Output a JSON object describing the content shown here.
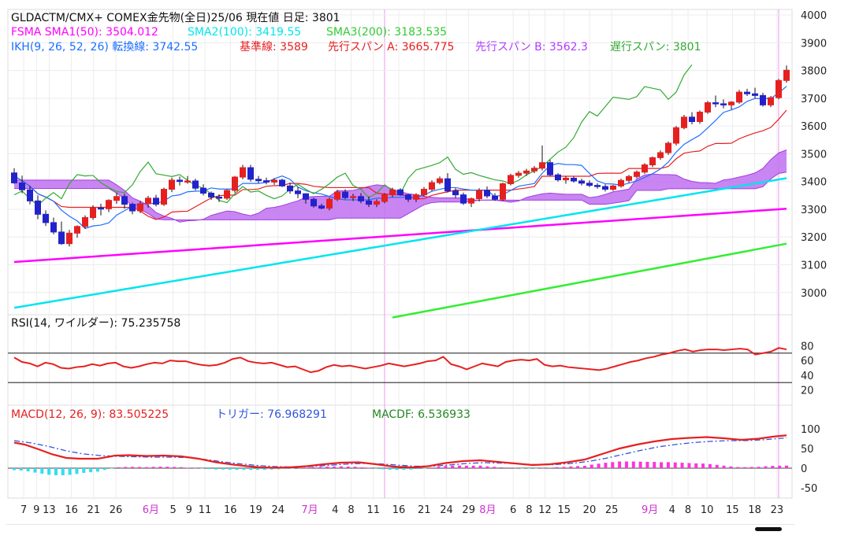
{
  "header": {
    "title": "GLDACTM/CMX+ COMEX金先物(全日)25/06  現在値 日足: 3801",
    "sma_line": [
      {
        "text": "FSMA SMA1(50): 3504.012",
        "color": "#ff00ff"
      },
      {
        "text": "SMA2(100): 3419.55",
        "color": "#00e5ee"
      },
      {
        "text": "SMA3(200): 3183.535",
        "color": "#33cc33"
      }
    ],
    "ikh_line": [
      {
        "text": "IKH(9, 26, 52, 26) 転換線: 3742.55",
        "color": "#1e6fff"
      },
      {
        "text": "基準線: 3589",
        "color": "#e62020"
      },
      {
        "text": "先行スパン A: 3665.775",
        "color": "#e62020"
      },
      {
        "text": "先行スパン B: 3562.3",
        "color": "#b03cff"
      },
      {
        "text": "遅行スパン: 3801",
        "color": "#33aa33"
      }
    ],
    "rsi_label": "RSI(14, ワイルダー): 75.235758",
    "macd_line": [
      {
        "text": "MACD(12, 26, 9): 83.505225",
        "color": "#e62020"
      },
      {
        "text": "トリガー: 76.968291",
        "color": "#3355dd"
      },
      {
        "text": "MACDF: 6.536933",
        "color": "#228822"
      }
    ]
  },
  "colors": {
    "up": "#e62020",
    "down": "#2222cc",
    "sma50": "#ff00ff",
    "sma100": "#00e5ee",
    "sma200": "#33ee33",
    "tenkan": "#1e6fff",
    "kijun": "#e62020",
    "chikou": "#33aa33",
    "cloud": "#c070ee",
    "rsi": "#e62020",
    "macd": "#e62020",
    "trigger": "#3355dd",
    "hist": "#ff33dd",
    "hist_neg": "#33ddee",
    "month_line": "#ee99ee"
  },
  "chart_data": [
    {
      "type": "candlestick",
      "ylim": [
        2920,
        4020
      ],
      "yticks": [
        "4000",
        "3900",
        "3800",
        "3700",
        "3600",
        "3500",
        "3400",
        "3300",
        "3200",
        "3100",
        "3000"
      ],
      "ohlc": [
        [
          3431,
          3448,
          3392,
          3395
        ],
        [
          3395,
          3421,
          3358,
          3370
        ],
        [
          3370,
          3384,
          3318,
          3330
        ],
        [
          3330,
          3350,
          3264,
          3282
        ],
        [
          3282,
          3296,
          3240,
          3252
        ],
        [
          3252,
          3270,
          3210,
          3218
        ],
        [
          3218,
          3256,
          3172,
          3176
        ],
        [
          3176,
          3226,
          3166,
          3214
        ],
        [
          3214,
          3242,
          3198,
          3238
        ],
        [
          3238,
          3278,
          3230,
          3270
        ],
        [
          3270,
          3314,
          3262,
          3305
        ],
        [
          3305,
          3320,
          3278,
          3302
        ],
        [
          3302,
          3336,
          3290,
          3332
        ],
        [
          3332,
          3360,
          3320,
          3346
        ],
        [
          3346,
          3356,
          3302,
          3318
        ],
        [
          3318,
          3324,
          3282,
          3294
        ],
        [
          3294,
          3330,
          3286,
          3320
        ],
        [
          3320,
          3348,
          3306,
          3340
        ],
        [
          3340,
          3352,
          3310,
          3318
        ],
        [
          3318,
          3378,
          3312,
          3372
        ],
        [
          3372,
          3414,
          3362,
          3405
        ],
        [
          3405,
          3418,
          3386,
          3400
        ],
        [
          3400,
          3420,
          3392,
          3402
        ],
        [
          3402,
          3410,
          3368,
          3376
        ],
        [
          3376,
          3390,
          3350,
          3358
        ],
        [
          3358,
          3364,
          3334,
          3344
        ],
        [
          3344,
          3354,
          3326,
          3340
        ],
        [
          3340,
          3372,
          3334,
          3368
        ],
        [
          3368,
          3420,
          3360,
          3416
        ],
        [
          3416,
          3460,
          3408,
          3450
        ],
        [
          3450,
          3460,
          3400,
          3408
        ],
        [
          3408,
          3420,
          3394,
          3403
        ],
        [
          3403,
          3414,
          3390,
          3398
        ],
        [
          3398,
          3412,
          3388,
          3405
        ],
        [
          3405,
          3410,
          3380,
          3384
        ],
        [
          3384,
          3396,
          3356,
          3366
        ],
        [
          3366,
          3380,
          3340,
          3356
        ],
        [
          3356,
          3358,
          3320,
          3336
        ],
        [
          3336,
          3342,
          3306,
          3312
        ],
        [
          3312,
          3320,
          3300,
          3304
        ],
        [
          3304,
          3342,
          3296,
          3336
        ],
        [
          3336,
          3370,
          3330,
          3362
        ],
        [
          3362,
          3372,
          3336,
          3342
        ],
        [
          3342,
          3356,
          3330,
          3346
        ],
        [
          3346,
          3358,
          3322,
          3330
        ],
        [
          3330,
          3346,
          3308,
          3318
        ],
        [
          3318,
          3336,
          3308,
          3328
        ],
        [
          3328,
          3358,
          3322,
          3352
        ],
        [
          3352,
          3378,
          3344,
          3370
        ],
        [
          3370,
          3376,
          3348,
          3352
        ],
        [
          3352,
          3356,
          3326,
          3336
        ],
        [
          3336,
          3358,
          3326,
          3352
        ],
        [
          3352,
          3380,
          3346,
          3372
        ],
        [
          3372,
          3404,
          3366,
          3396
        ],
        [
          3396,
          3418,
          3390,
          3410
        ],
        [
          3410,
          3430,
          3360,
          3366
        ],
        [
          3366,
          3376,
          3340,
          3352
        ],
        [
          3352,
          3360,
          3316,
          3322
        ],
        [
          3322,
          3342,
          3308,
          3338
        ],
        [
          3338,
          3376,
          3328,
          3368
        ],
        [
          3368,
          3382,
          3340,
          3348
        ],
        [
          3348,
          3358,
          3330,
          3336
        ],
        [
          3336,
          3396,
          3330,
          3392
        ],
        [
          3392,
          3428,
          3386,
          3422
        ],
        [
          3422,
          3438,
          3414,
          3430
        ],
        [
          3430,
          3446,
          3420,
          3438
        ],
        [
          3438,
          3456,
          3430,
          3448
        ],
        [
          3448,
          3530,
          3440,
          3468
        ],
        [
          3468,
          3478,
          3420,
          3424
        ],
        [
          3424,
          3430,
          3400,
          3406
        ],
        [
          3406,
          3420,
          3392,
          3412
        ],
        [
          3412,
          3418,
          3396,
          3402
        ],
        [
          3402,
          3410,
          3386,
          3394
        ],
        [
          3394,
          3404,
          3380,
          3386
        ],
        [
          3386,
          3394,
          3374,
          3382
        ],
        [
          3382,
          3390,
          3364,
          3372
        ],
        [
          3372,
          3388,
          3366,
          3384
        ],
        [
          3384,
          3410,
          3378,
          3404
        ],
        [
          3404,
          3424,
          3396,
          3418
        ],
        [
          3418,
          3440,
          3412,
          3434
        ],
        [
          3434,
          3466,
          3428,
          3460
        ],
        [
          3460,
          3490,
          3452,
          3486
        ],
        [
          3486,
          3512,
          3478,
          3504
        ],
        [
          3504,
          3544,
          3496,
          3538
        ],
        [
          3538,
          3600,
          3530,
          3594
        ],
        [
          3594,
          3640,
          3588,
          3632
        ],
        [
          3632,
          3650,
          3606,
          3616
        ],
        [
          3616,
          3656,
          3608,
          3650
        ],
        [
          3650,
          3690,
          3644,
          3684
        ],
        [
          3684,
          3710,
          3668,
          3680
        ],
        [
          3680,
          3696,
          3664,
          3676
        ],
        [
          3676,
          3690,
          3660,
          3686
        ],
        [
          3686,
          3730,
          3680,
          3722
        ],
        [
          3722,
          3734,
          3708,
          3716
        ],
        [
          3716,
          3738,
          3700,
          3710
        ],
        [
          3710,
          3720,
          3670,
          3676
        ],
        [
          3676,
          3708,
          3668,
          3702
        ],
        [
          3702,
          3770,
          3696,
          3764
        ],
        [
          3764,
          3818,
          3756,
          3801
        ]
      ],
      "sma50": [
        3110,
        3302
      ],
      "sma100": [
        2945,
        3412
      ],
      "sma200": [
        2910,
        3176
      ],
      "sma200_start_index": 48
    },
    {
      "type": "line",
      "name": "RSI",
      "ylim": [
        10,
        90
      ],
      "yticks": [
        "80",
        "60",
        "40",
        "20"
      ],
      "levels": [
        70,
        30
      ],
      "values": [
        64,
        58,
        56,
        52,
        57,
        55,
        50,
        49,
        51,
        52,
        55,
        53,
        56,
        57,
        52,
        50,
        52,
        55,
        57,
        56,
        60,
        59,
        59,
        56,
        54,
        53,
        54,
        57,
        62,
        64,
        59,
        57,
        56,
        57,
        54,
        51,
        52,
        48,
        44,
        46,
        51,
        54,
        52,
        53,
        51,
        49,
        51,
        53,
        56,
        54,
        52,
        54,
        56,
        59,
        60,
        65,
        55,
        52,
        48,
        52,
        56,
        54,
        52,
        58,
        60,
        61,
        60,
        62,
        54,
        52,
        53,
        51,
        50,
        49,
        48,
        47,
        49,
        52,
        55,
        58,
        60,
        63,
        65,
        68,
        70,
        73,
        75,
        72,
        74,
        75,
        75,
        74,
        75,
        76,
        75,
        68,
        70,
        72,
        77,
        75
      ]
    },
    {
      "type": "line",
      "name": "MACD",
      "ylim": [
        -70,
        110
      ],
      "yticks": [
        "100",
        "50",
        "0",
        "-50"
      ],
      "macd": [
        [
          0,
          65
        ],
        [
          3,
          60
        ],
        [
          7,
          48
        ],
        [
          11,
          35
        ],
        [
          15,
          26
        ],
        [
          19,
          24
        ],
        [
          24,
          24
        ],
        [
          29,
          32
        ],
        [
          33,
          33
        ],
        [
          38,
          31
        ],
        [
          43,
          32
        ],
        [
          48,
          30
        ],
        [
          53,
          24
        ],
        [
          58,
          15
        ],
        [
          63,
          9
        ],
        [
          67,
          5
        ],
        [
          71,
          2
        ],
        [
          75,
          1
        ],
        [
          79,
          2
        ],
        [
          84,
          5
        ],
        [
          89,
          10
        ],
        [
          94,
          14
        ],
        [
          99,
          15
        ],
        [
          104,
          10
        ],
        [
          109,
          4
        ],
        [
          114,
          2
        ],
        [
          119,
          5
        ],
        [
          124,
          13
        ],
        [
          129,
          18
        ],
        [
          134,
          20
        ],
        [
          139,
          16
        ],
        [
          144,
          12
        ],
        [
          149,
          8
        ],
        [
          154,
          10
        ],
        [
          159,
          15
        ],
        [
          164,
          22
        ],
        [
          169,
          36
        ],
        [
          174,
          50
        ],
        [
          179,
          60
        ],
        [
          184,
          68
        ],
        [
          189,
          74
        ],
        [
          194,
          77
        ],
        [
          199,
          79
        ],
        [
          204,
          76
        ],
        [
          209,
          72
        ],
        [
          214,
          75
        ],
        [
          218,
          80
        ],
        [
          222,
          83.5
        ]
      ],
      "trigger": [
        [
          0,
          70
        ],
        [
          5,
          64
        ],
        [
          10,
          55
        ],
        [
          15,
          44
        ],
        [
          20,
          36
        ],
        [
          25,
          32
        ],
        [
          30,
          30
        ],
        [
          35,
          29
        ],
        [
          40,
          28
        ],
        [
          45,
          28
        ],
        [
          50,
          27
        ],
        [
          55,
          22
        ],
        [
          60,
          16
        ],
        [
          65,
          11
        ],
        [
          70,
          7
        ],
        [
          75,
          4
        ],
        [
          80,
          3
        ],
        [
          85,
          4
        ],
        [
          90,
          7
        ],
        [
          95,
          10
        ],
        [
          100,
          12
        ],
        [
          105,
          11
        ],
        [
          110,
          8
        ],
        [
          115,
          5
        ],
        [
          120,
          5
        ],
        [
          125,
          8
        ],
        [
          130,
          12
        ],
        [
          135,
          14
        ],
        [
          140,
          13
        ],
        [
          145,
          11
        ],
        [
          150,
          9
        ],
        [
          155,
          9
        ],
        [
          160,
          12
        ],
        [
          165,
          17
        ],
        [
          170,
          25
        ],
        [
          175,
          35
        ],
        [
          180,
          45
        ],
        [
          185,
          54
        ],
        [
          190,
          60
        ],
        [
          195,
          65
        ],
        [
          200,
          68
        ],
        [
          205,
          70
        ],
        [
          210,
          70
        ],
        [
          215,
          72
        ],
        [
          222,
          77
        ]
      ],
      "hist_step": 2
    }
  ],
  "x_axis": {
    "labels": [
      {
        "t": "7",
        "i": 3
      },
      {
        "t": "9",
        "i": 7
      },
      {
        "t": "13",
        "i": 11
      },
      {
        "t": "16",
        "i": 18
      },
      {
        "t": "21",
        "i": 25
      },
      {
        "t": "26",
        "i": 32
      },
      {
        "t": "6月",
        "i": 43,
        "month": true
      },
      {
        "t": "5",
        "i": 50
      },
      {
        "t": "9",
        "i": 55
      },
      {
        "t": "11",
        "i": 60
      },
      {
        "t": "16",
        "i": 68
      },
      {
        "t": "19",
        "i": 76
      },
      {
        "t": "24",
        "i": 83
      },
      {
        "t": "7月",
        "i": 93,
        "month": true
      },
      {
        "t": "4",
        "i": 101
      },
      {
        "t": "8",
        "i": 106
      },
      {
        "t": "11",
        "i": 113
      },
      {
        "t": "16",
        "i": 121
      },
      {
        "t": "21",
        "i": 129
      },
      {
        "t": "24",
        "i": 136
      },
      {
        "t": "29",
        "i": 143
      },
      {
        "t": "8月",
        "i": 149,
        "month": true
      },
      {
        "t": "6",
        "i": 157
      },
      {
        "t": "8",
        "i": 162
      },
      {
        "t": "12",
        "i": 167
      },
      {
        "t": "15",
        "i": 173
      },
      {
        "t": "20",
        "i": 181
      },
      {
        "t": "25",
        "i": 188
      },
      {
        "t": "9月",
        "i": 200,
        "month": true
      },
      {
        "t": "4",
        "i": 207
      },
      {
        "t": "8",
        "i": 212
      },
      {
        "t": "10",
        "i": 218
      },
      {
        "t": "15",
        "i": 226
      },
      {
        "t": "18",
        "i": 233
      },
      {
        "t": "23",
        "i": 240
      }
    ],
    "month_lines": [
      47,
      97,
      152,
      203
    ]
  }
}
